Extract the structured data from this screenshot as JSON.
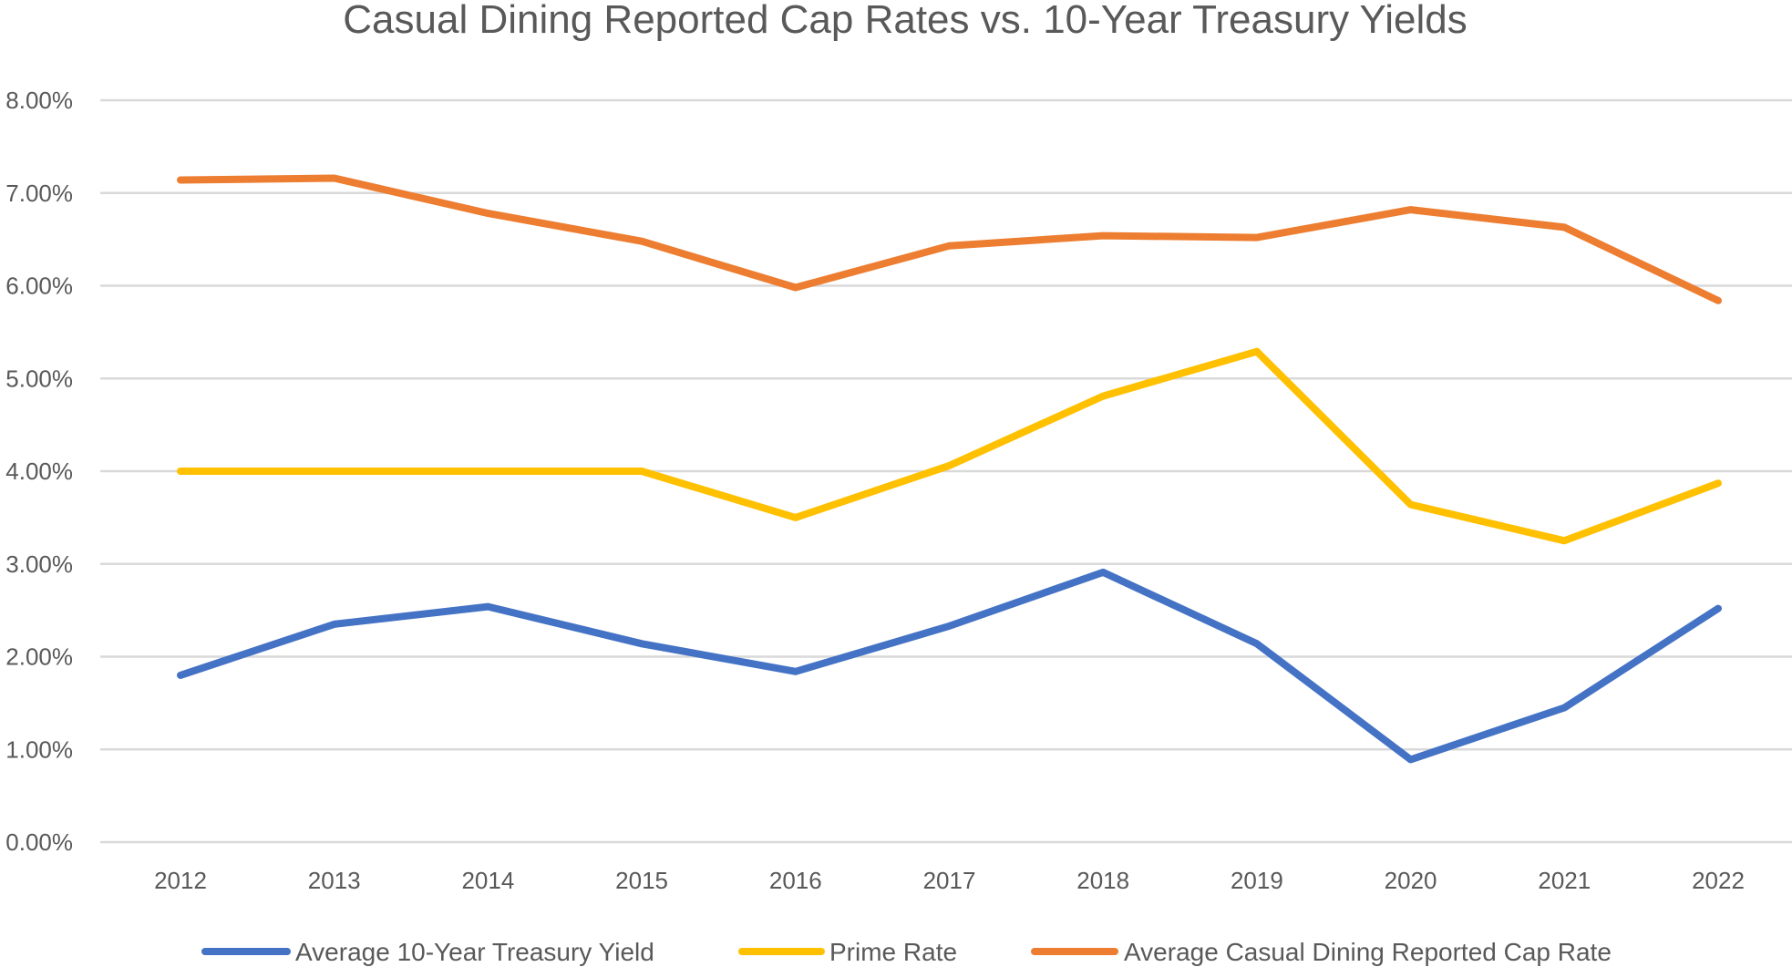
{
  "chart_data": {
    "type": "line",
    "title": "Casual Dining Reported Cap Rates vs. 10-Year Treasury Yields",
    "xlabel": "",
    "ylabel": "",
    "categories": [
      "2012",
      "2013",
      "2014",
      "2015",
      "2016",
      "2017",
      "2018",
      "2019",
      "2020",
      "2021",
      "2022"
    ],
    "y_ticks": [
      "0.00%",
      "1.00%",
      "2.00%",
      "3.00%",
      "4.00%",
      "5.00%",
      "6.00%",
      "7.00%",
      "8.00%"
    ],
    "ylim": [
      0,
      8
    ],
    "grid": true,
    "legend_position": "bottom",
    "series": [
      {
        "name": "Average 10-Year Treasury Yield",
        "color": "#4472C4",
        "values": [
          1.8,
          2.35,
          2.54,
          2.14,
          1.84,
          2.33,
          2.91,
          2.14,
          0.89,
          1.45,
          2.52
        ]
      },
      {
        "name": "Prime Rate",
        "color": "#FFC000",
        "values": [
          4.0,
          4.0,
          4.0,
          4.0,
          3.5,
          4.06,
          4.81,
          5.29,
          3.64,
          3.25,
          3.87
        ]
      },
      {
        "name": "Average Casual Dining Reported Cap Rate",
        "color": "#ED7D31",
        "values": [
          7.14,
          7.16,
          6.78,
          6.48,
          5.98,
          6.43,
          6.54,
          6.52,
          6.82,
          6.63,
          5.84
        ]
      }
    ]
  }
}
